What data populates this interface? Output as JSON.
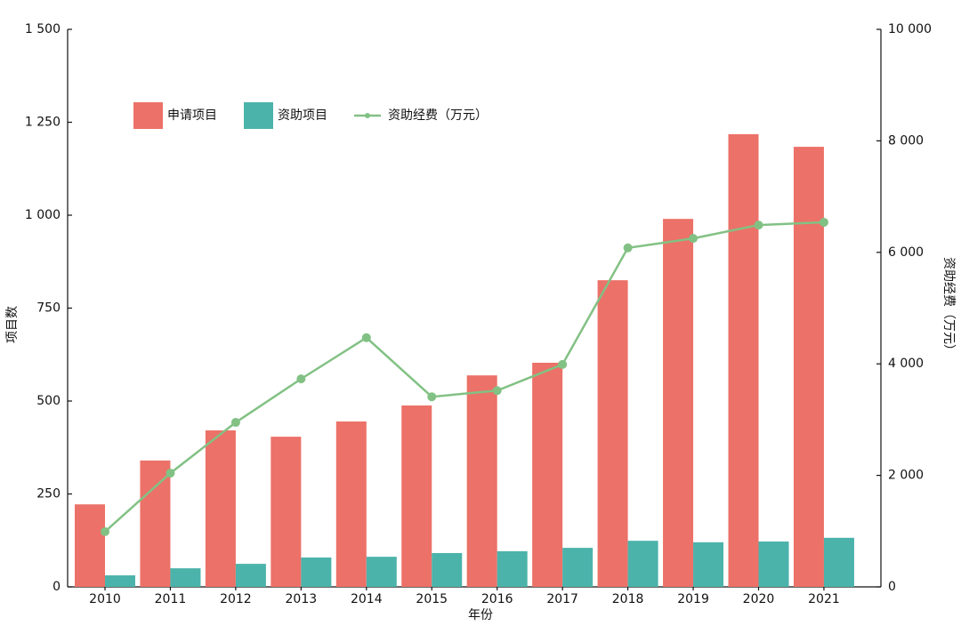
{
  "chart_data": {
    "type": "bar",
    "x_label": "年份",
    "y_label": "项目数",
    "y2_label": "资助经费（万元）",
    "categories": [
      "2010",
      "2011",
      "2012",
      "2013",
      "2014",
      "2015",
      "2016",
      "2017",
      "2018",
      "2019",
      "2020",
      "2021"
    ],
    "series": [
      {
        "name": "申请项目",
        "color": "#ec7168",
        "type": "bar",
        "values": [
          222,
          340,
          421,
          404,
          445,
          488,
          569,
          603,
          825,
          990,
          1218,
          1184
        ]
      },
      {
        "name": "资助项目",
        "color": "#4bb3aa",
        "type": "bar",
        "values": [
          31,
          50,
          62,
          79,
          81,
          91,
          96,
          105,
          124,
          120,
          122,
          132
        ]
      },
      {
        "name": "资助经费（万元）",
        "color": "#82c184",
        "type": "line",
        "axis": "y2",
        "values": [
          990,
          2040,
          2950,
          3730,
          4470,
          3410,
          3520,
          3990,
          6080,
          6250,
          6490,
          6540
        ]
      }
    ],
    "ylim": [
      0,
      1500
    ],
    "yticks": [
      0,
      250,
      500,
      750,
      {
        "value": 1000,
        "label": "1 000"
      },
      {
        "value": 1250,
        "label": "1 250"
      },
      {
        "value": 1500,
        "label": "1 500"
      }
    ],
    "y2lim": [
      0,
      10000
    ],
    "y2ticks": [
      0,
      {
        "value": 2000,
        "label": "2 000"
      },
      {
        "value": 4000,
        "label": "4 000"
      },
      {
        "value": 6000,
        "label": "6 000"
      },
      {
        "value": 8000,
        "label": "8 000"
      },
      {
        "value": 10000,
        "label": "10 000"
      }
    ],
    "legend": "upper left"
  }
}
